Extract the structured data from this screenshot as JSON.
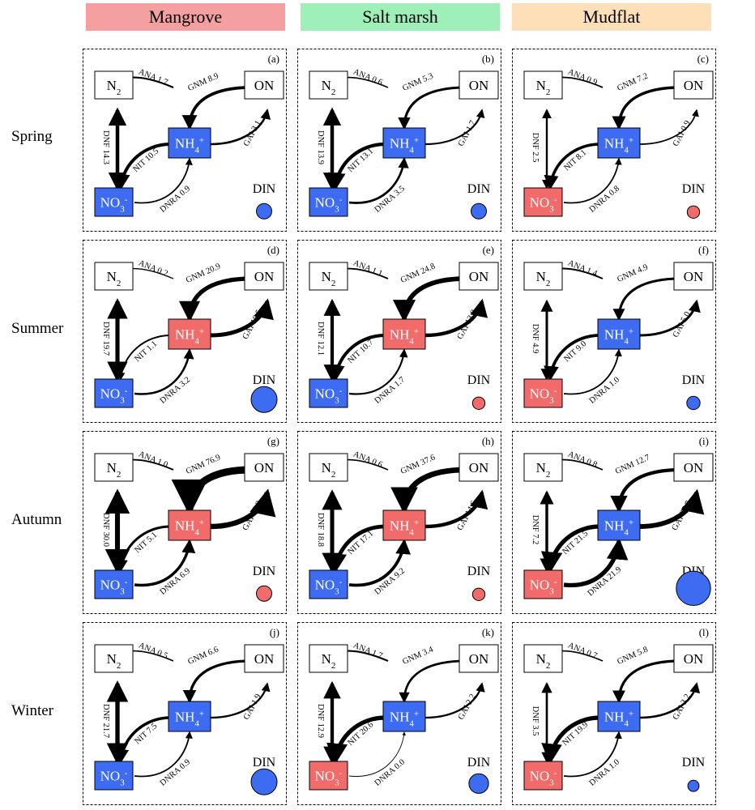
{
  "habitats": [
    {
      "label": "Mangrove",
      "color": "#f5a0a0"
    },
    {
      "label": "Salt marsh",
      "color": "#9ef0b8"
    },
    {
      "label": "Mudflat",
      "color": "#fde0b8"
    }
  ],
  "seasons": [
    "Spring",
    "Summer",
    "Autumn",
    "Winter"
  ],
  "colors": {
    "increase": "#f26b6b",
    "decrease": "#3d6cf2"
  },
  "node_labels": {
    "n2": "N",
    "n2_sub": "2",
    "on": "ON",
    "nh4": "NH",
    "nh4_sub": "4",
    "nh4_sup": "+",
    "no3": "NO",
    "no3_sub": "3",
    "no3_sup": "-",
    "din": "DIN"
  },
  "panels": [
    {
      "id": "(a)",
      "habitat": "Mangrove",
      "season": "Spring",
      "nh4_color": "blue",
      "no3_color": "blue",
      "din_color": "blue",
      "din_size": 0.25,
      "fluxes": {
        "ANA": "ANA 1.7",
        "GNM": "GNM 8.9",
        "DNF": "DNF 14.3",
        "NIT": "NIT 10.5",
        "GAI": "GAI 3.1",
        "DNRA": "DNRA 0.9"
      },
      "values": {
        "ANA": 1.7,
        "GNM": 8.9,
        "DNF": 14.3,
        "NIT": 10.5,
        "GAI": 3.1,
        "DNRA": 0.9
      }
    },
    {
      "id": "(b)",
      "habitat": "Salt marsh",
      "season": "Spring",
      "nh4_color": "blue",
      "no3_color": "blue",
      "din_color": "blue",
      "din_size": 0.25,
      "fluxes": {
        "ANA": "ANA 0.6",
        "GNM": "GNM 5.3",
        "DNF": "DNF 13.9",
        "NIT": "NIT 13.1",
        "GAI": "GAI 1.7",
        "DNRA": "DNRA 3.5"
      },
      "values": {
        "ANA": 0.6,
        "GNM": 5.3,
        "DNF": 13.9,
        "NIT": 13.1,
        "GAI": 1.7,
        "DNRA": 3.5
      }
    },
    {
      "id": "(c)",
      "habitat": "Mudflat",
      "season": "Spring",
      "nh4_color": "blue",
      "no3_color": "red",
      "din_color": "red",
      "din_size": 0.18,
      "fluxes": {
        "ANA": "ANA 0.9",
        "GNM": "GNM 7.2",
        "DNF": "DNF  2.5",
        "NIT": "NIT 8.1",
        "GAI": "GAI 0.9",
        "DNRA": "DNRA 0.8"
      },
      "values": {
        "ANA": 0.9,
        "GNM": 7.2,
        "DNF": 2.5,
        "NIT": 8.1,
        "GAI": 0.9,
        "DNRA": 0.8
      }
    },
    {
      "id": "(d)",
      "habitat": "Mangrove",
      "season": "Summer",
      "nh4_color": "red",
      "no3_color": "blue",
      "din_color": "blue",
      "din_size": 0.5,
      "fluxes": {
        "ANA": "ANA 0.2",
        "GNM": "GNM 20.9",
        "DNF": "DNF 19.7",
        "NIT": "NIT 1.1",
        "GAI": "GAI 18.5",
        "DNRA": "DNRA  3.2"
      },
      "values": {
        "ANA": 0.2,
        "GNM": 20.9,
        "DNF": 19.7,
        "NIT": 1.1,
        "GAI": 18.5,
        "DNRA": 3.2
      }
    },
    {
      "id": "(e)",
      "habitat": "Salt marsh",
      "season": "Summer",
      "nh4_color": "red",
      "no3_color": "blue",
      "din_color": "red",
      "din_size": 0.18,
      "fluxes": {
        "ANA": "ANA 1.1",
        "GNM": "GNM  24.8",
        "DNF": "DNF 12.1",
        "NIT": "NIT 10.7",
        "GAI": "GAI 13.8",
        "DNRA": "DNRA 1.7"
      },
      "values": {
        "ANA": 1.1,
        "GNM": 24.8,
        "DNF": 12.1,
        "NIT": 10.7,
        "GAI": 13.8,
        "DNRA": 1.7
      }
    },
    {
      "id": "(f)",
      "habitat": "Mudflat",
      "season": "Summer",
      "nh4_color": "blue",
      "no3_color": "red",
      "din_color": "blue",
      "din_size": 0.2,
      "fluxes": {
        "ANA": "ANA 1.4",
        "GNM": "GNM 4.9",
        "DNF": "DNF 4.9",
        "NIT": "NIT 9.0",
        "GAI": "GAI 5.0",
        "DNRA": "DNRA 1.0"
      },
      "values": {
        "ANA": 1.4,
        "GNM": 4.9,
        "DNF": 4.9,
        "NIT": 9.0,
        "GAI": 5.0,
        "DNRA": 1.0
      }
    },
    {
      "id": "(g)",
      "habitat": "Mangrove",
      "season": "Autumn",
      "nh4_color": "red",
      "no3_color": "blue",
      "din_color": "red",
      "din_size": 0.25,
      "fluxes": {
        "ANA": "ANA 1.0",
        "GNM": "GNM 76.9",
        "DNF": "DNF 30.0",
        "NIT": "NIT 5.1",
        "GAI": "GAI 35.3",
        "DNRA": "DNRA 6.9"
      },
      "values": {
        "ANA": 1.0,
        "GNM": 76.9,
        "DNF": 30.0,
        "NIT": 5.1,
        "GAI": 35.3,
        "DNRA": 6.9
      }
    },
    {
      "id": "(h)",
      "habitat": "Salt marsh",
      "season": "Autumn",
      "nh4_color": "red",
      "no3_color": "blue",
      "din_color": "red",
      "din_size": 0.18,
      "fluxes": {
        "ANA": "ANA 0.6",
        "GNM": "GNM 37.6",
        "DNF": "DNF 18.8",
        "NIT": "NIT 17.1",
        "GAI": "GAI 14.6",
        "DNRA": "DNRA 9.2"
      },
      "values": {
        "ANA": 0.6,
        "GNM": 37.6,
        "DNF": 18.8,
        "NIT": 17.1,
        "GAI": 14.6,
        "DNRA": 9.2
      }
    },
    {
      "id": "(i)",
      "habitat": "Mudflat",
      "season": "Autumn",
      "nh4_color": "blue",
      "no3_color": "red",
      "din_color": "blue",
      "din_size": 0.7,
      "fluxes": {
        "ANA": "ANA 0.8",
        "GNM": "GNM 12.7",
        "DNF": "DNF 7.2",
        "NIT": "NIT 21.5",
        "GAI": "GAI 27.7",
        "DNRA": "DNRA 21.9"
      },
      "values": {
        "ANA": 0.8,
        "GNM": 12.7,
        "DNF": 7.2,
        "NIT": 21.5,
        "GAI": 27.7,
        "DNRA": 21.9
      }
    },
    {
      "id": "(j)",
      "habitat": "Mangrove",
      "season": "Winter",
      "nh4_color": "blue",
      "no3_color": "blue",
      "din_color": "blue",
      "din_size": 0.5,
      "fluxes": {
        "ANA": "ANA 0.5",
        "GNM": "GNM 6.6",
        "DNF": "DNF 21.7",
        "NIT": "NIT 7.5",
        "GAI": "GAI 1.9",
        "DNRA": "DNRA 0.9"
      },
      "values": {
        "ANA": 0.5,
        "GNM": 6.6,
        "DNF": 21.7,
        "NIT": 7.5,
        "GAI": 1.9,
        "DNRA": 0.9
      }
    },
    {
      "id": "(k)",
      "habitat": "Salt marsh",
      "season": "Winter",
      "nh4_color": "blue",
      "no3_color": "red",
      "din_color": "blue",
      "din_size": 0.35,
      "fluxes": {
        "ANA": "ANA 1.7",
        "GNM": "GNM 3.4",
        "DNF": "DNF 12.9",
        "NIT": "NIT 20.6",
        "GAI": "GAI 2.2",
        "DNRA": "DNRA 0.0"
      },
      "values": {
        "ANA": 1.7,
        "GNM": 3.4,
        "DNF": 12.9,
        "NIT": 20.6,
        "GAI": 2.2,
        "DNRA": 0.0
      }
    },
    {
      "id": "(l)",
      "habitat": "Mudflat",
      "season": "Winter",
      "nh4_color": "blue",
      "no3_color": "red",
      "din_color": "blue",
      "din_size": 0.15,
      "fluxes": {
        "ANA": "ANA 0.7",
        "GNM": "GNM 5.8",
        "DNF": "DNF 3.5",
        "NIT": "NIT 19.9",
        "GAI": "GAI 3.2",
        "DNRA": "DNRA 1.0"
      },
      "values": {
        "ANA": 0.7,
        "GNM": 5.8,
        "DNF": 3.5,
        "NIT": 19.9,
        "GAI": 3.2,
        "DNRA": 1.0
      }
    }
  ]
}
